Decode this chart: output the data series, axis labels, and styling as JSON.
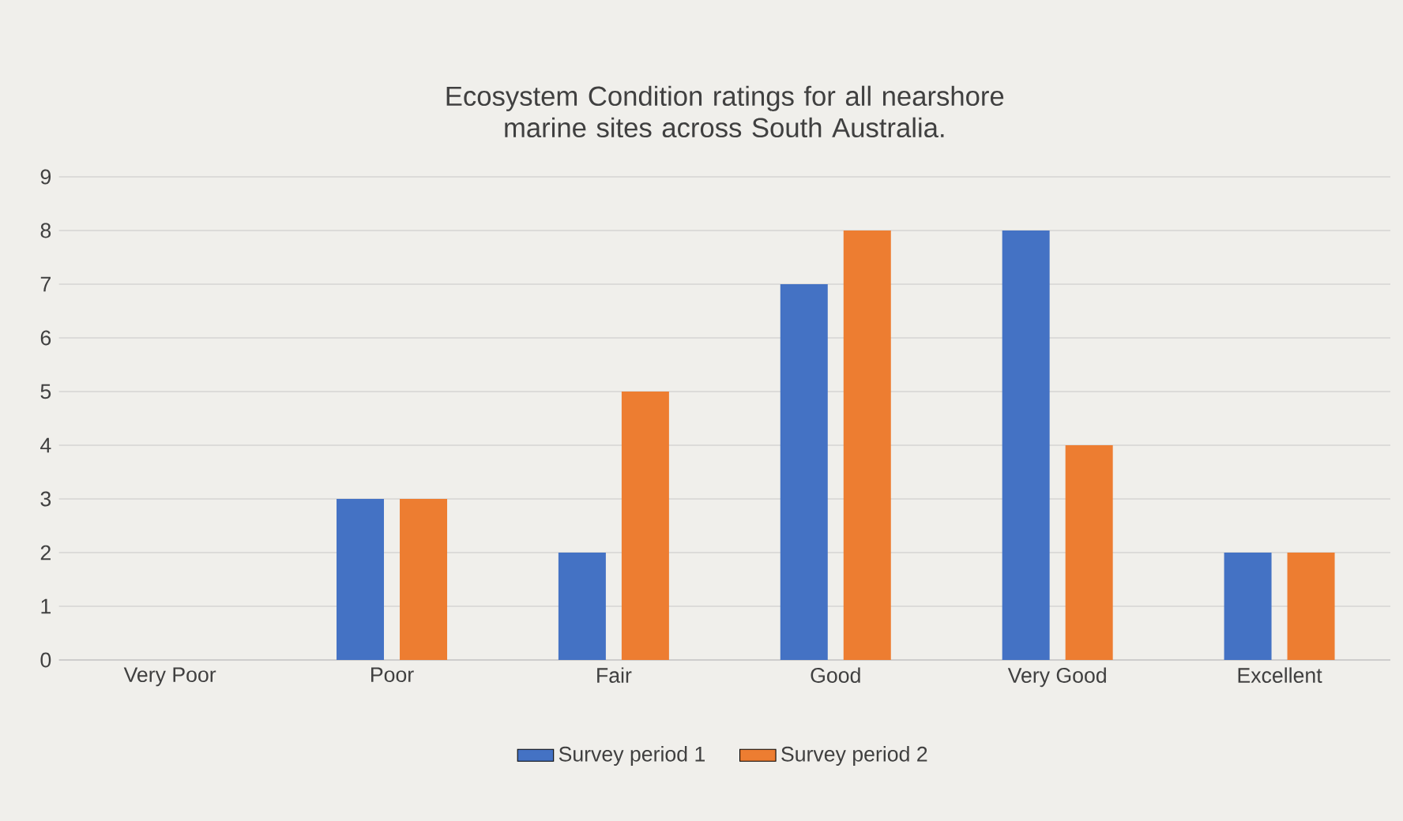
{
  "chart_data": {
    "type": "bar",
    "title": "Ecosystem Condition ratings for all nearshore marine sites across South Australia.",
    "categories": [
      "Very Poor",
      "Poor",
      "Fair",
      "Good",
      "Very Good",
      "Excellent"
    ],
    "series": [
      {
        "name": "Survey period 1",
        "color": "#4472c4",
        "values": [
          0,
          3,
          2,
          7,
          8,
          2
        ]
      },
      {
        "name": "Survey period 2",
        "color": "#ed7d31",
        "values": [
          0,
          3,
          5,
          8,
          4,
          2
        ]
      }
    ],
    "ylim": [
      0,
      9
    ],
    "yticks": [
      0,
      1,
      2,
      3,
      4,
      5,
      6,
      7,
      8,
      9
    ],
    "grid": "y",
    "legend": "bottom"
  }
}
